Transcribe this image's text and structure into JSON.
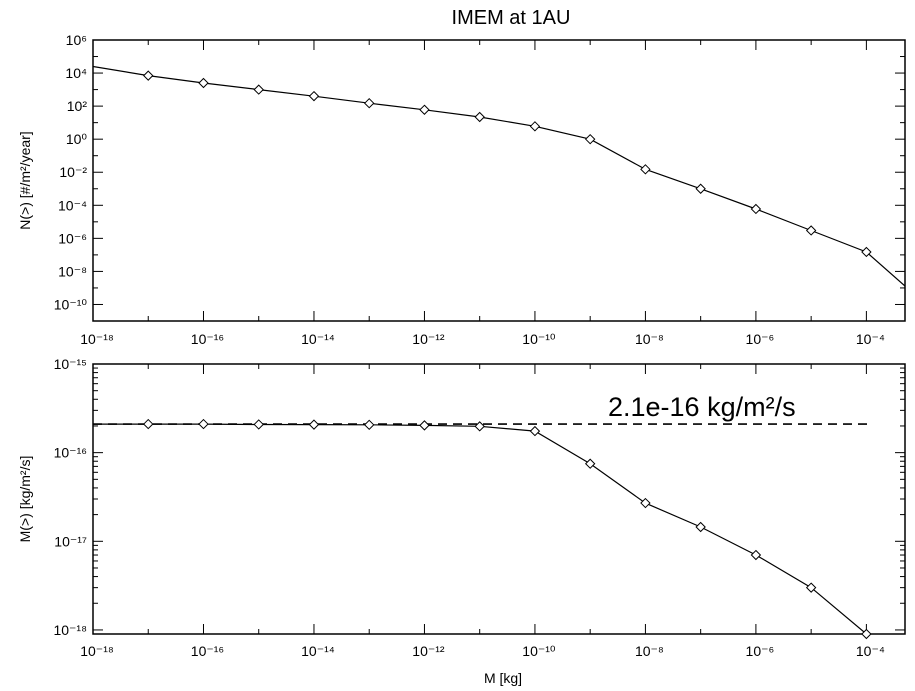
{
  "figure": {
    "title": "IMEM at 1AU"
  },
  "chart_data": [
    {
      "type": "line",
      "panel": "top",
      "xlabel": "",
      "ylabel": "N(>) [#/m²/year]",
      "xscale": "log",
      "yscale": "log",
      "xlim": [
        1e-18,
        0.0005
      ],
      "ylim": [
        1e-11,
        1000000.0
      ],
      "x_tick_labels": [
        "10⁻¹⁸",
        "10⁻¹⁶",
        "10⁻¹⁴",
        "10⁻¹²",
        "10⁻¹⁰",
        "10⁻⁸",
        "10⁻⁶",
        "10⁻⁴"
      ],
      "x_tick_values": [
        1e-18,
        1e-16,
        1e-14,
        1e-12,
        1e-10,
        1e-08,
        1e-06,
        0.0001
      ],
      "y_tick_labels": [
        "10⁻¹⁰",
        "10⁻⁸",
        "10⁻⁶",
        "10⁻⁴",
        "10⁻²",
        "10⁰",
        "10²",
        "10⁴",
        "10⁶"
      ],
      "y_tick_values": [
        1e-10,
        1e-08,
        1e-06,
        0.0001,
        0.01,
        1,
        100.0,
        10000.0,
        1000000.0
      ],
      "grid": false,
      "marker": "diamond",
      "x": [
        1e-18,
        1e-17,
        1e-16,
        1e-15,
        1e-14,
        1e-13,
        1e-12,
        1e-11,
        1e-10,
        1e-09,
        1e-08,
        1e-07,
        1e-06,
        1e-05,
        0.0001,
        0.0005
      ],
      "values": [
        25000.0,
        7000.0,
        2500.0,
        1000.0,
        400.0,
        150.0,
        60.0,
        22.0,
        6,
        1,
        0.015,
        0.001,
        6e-05,
        3e-06,
        1.5e-07,
        1.3e-09
      ],
      "markers_shown": [
        false,
        true,
        true,
        true,
        true,
        true,
        true,
        true,
        true,
        true,
        true,
        true,
        true,
        true,
        true,
        false
      ]
    },
    {
      "type": "line",
      "panel": "bottom",
      "xlabel": "M [kg]",
      "ylabel": "M(>) [kg/m²/s]",
      "xscale": "log",
      "yscale": "log",
      "xlim": [
        1e-18,
        0.0005
      ],
      "ylim": [
        9e-19,
        1e-15
      ],
      "x_tick_labels": [
        "10⁻¹⁸",
        "10⁻¹⁶",
        "10⁻¹⁴",
        "10⁻¹²",
        "10⁻¹⁰",
        "10⁻⁸",
        "10⁻⁶",
        "10⁻⁴"
      ],
      "x_tick_values": [
        1e-18,
        1e-16,
        1e-14,
        1e-12,
        1e-10,
        1e-08,
        1e-06,
        0.0001
      ],
      "y_tick_labels": [
        "10⁻¹⁵",
        "10⁻¹⁶",
        "10⁻¹⁷",
        "10⁻¹⁸"
      ],
      "y_tick_values": [
        1e-15,
        1e-16,
        1e-17,
        1e-18
      ],
      "grid": false,
      "marker": "diamond",
      "x": [
        1e-18,
        1e-17,
        1e-16,
        1e-15,
        1e-14,
        1e-13,
        1e-12,
        1e-11,
        1e-10,
        1e-09,
        1e-08,
        1e-07,
        1e-06,
        1e-05,
        0.0001
      ],
      "values": [
        2.1e-16,
        2.1e-16,
        2.1e-16,
        2.08e-16,
        2.07e-16,
        2.06e-16,
        2.03e-16,
        1.98e-16,
        1.75e-16,
        7.5e-17,
        2.7e-17,
        1.45e-17,
        7e-18,
        3e-18,
        9e-19
      ],
      "markers_shown": [
        false,
        true,
        true,
        true,
        true,
        true,
        true,
        true,
        true,
        true,
        true,
        true,
        true,
        true,
        true
      ],
      "reference_line": {
        "y": 2.1e-16,
        "style": "dashed",
        "label": "2.1e-16 kg/m²/s"
      }
    }
  ]
}
